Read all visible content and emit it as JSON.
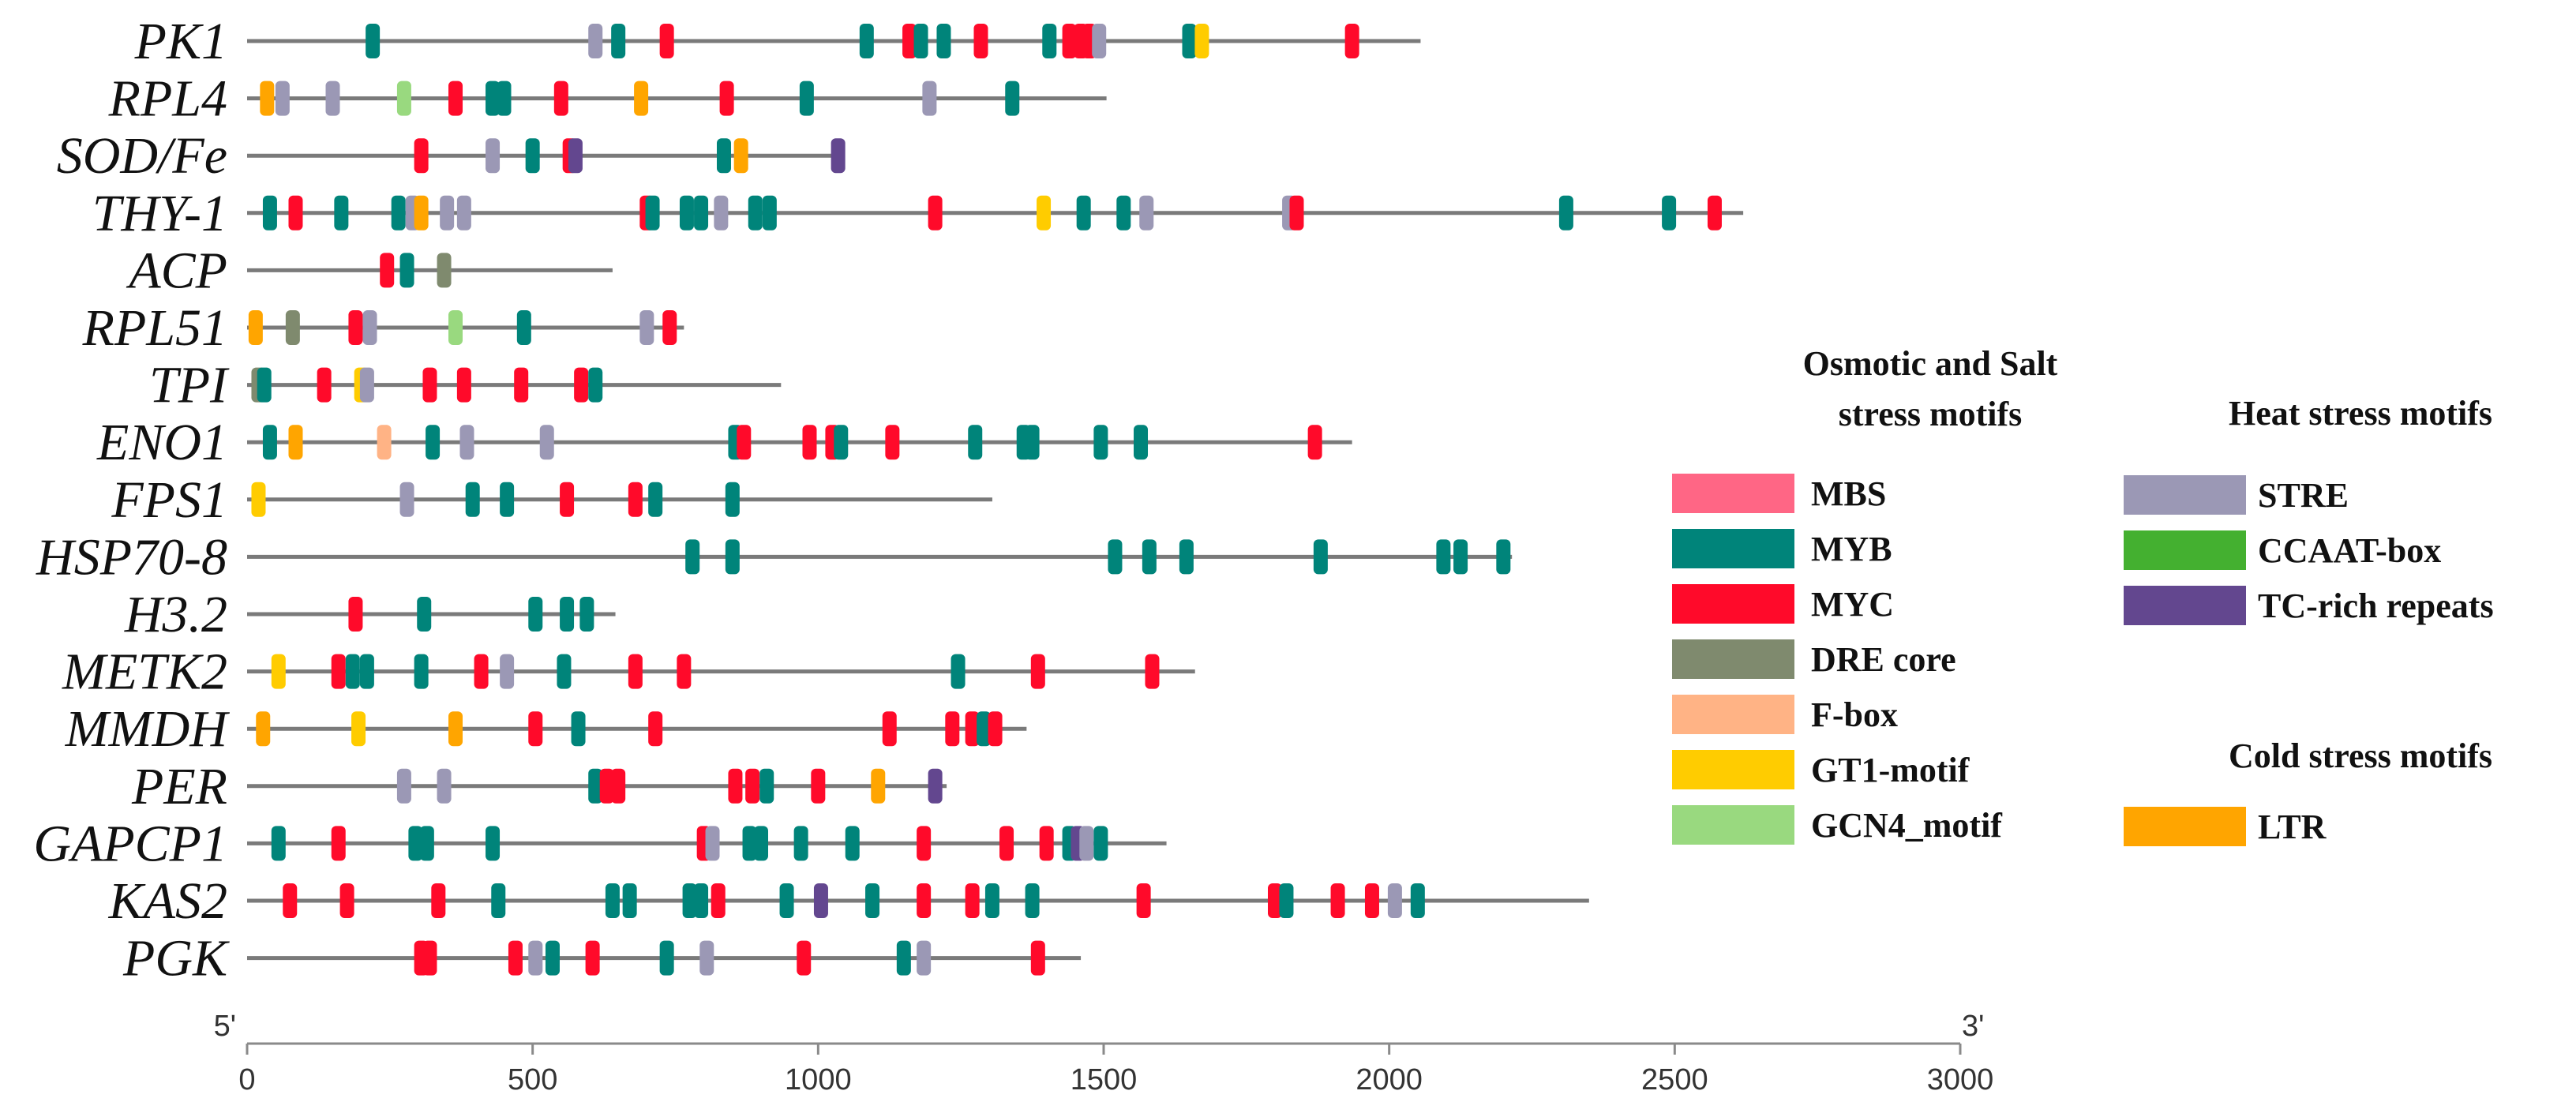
{
  "chart_data": {
    "type": "motif-map",
    "x_axis": {
      "range": [
        0,
        3000
      ],
      "ticks": [
        0,
        500,
        1000,
        1500,
        2000,
        2500,
        3000
      ],
      "end_left": "5'",
      "end_right": "3'"
    },
    "motif_types": [
      {
        "key": "MBS",
        "label": "MBS",
        "color": "#ff6685",
        "group": "osmotic"
      },
      {
        "key": "MYB",
        "label": "MYB",
        "color": "#00847a",
        "group": "osmotic"
      },
      {
        "key": "MYC",
        "label": "MYC",
        "color": "#ff0a2a",
        "group": "osmotic"
      },
      {
        "key": "DRE",
        "label": "DRE core",
        "color": "#7f8a6e",
        "group": "osmotic"
      },
      {
        "key": "FBOX",
        "label": "F-box",
        "color": "#ffb385",
        "group": "osmotic"
      },
      {
        "key": "GT1",
        "label": "GT1-motif",
        "color": "#ffcc00",
        "group": "osmotic"
      },
      {
        "key": "GCN4",
        "label": "GCN4_motif",
        "color": "#99d97f",
        "group": "osmotic"
      },
      {
        "key": "STRE",
        "label": "STRE",
        "color": "#9b98b5",
        "group": "heat"
      },
      {
        "key": "CCAAT",
        "label": "CCAAT-box",
        "color": "#44b030",
        "group": "heat"
      },
      {
        "key": "TC",
        "label": "TC-rich repeats",
        "color": "#63478f",
        "group": "heat"
      },
      {
        "key": "LTR",
        "label": "LTR",
        "color": "#ffa500",
        "group": "cold"
      }
    ],
    "legend_groups": [
      {
        "key": "osmotic",
        "title_lines": [
          "Osmotic and Salt",
          "stress motifs"
        ]
      },
      {
        "key": "heat",
        "title_lines": [
          "Heat stress motifs"
        ]
      },
      {
        "key": "cold",
        "title_lines": [
          "Cold stress motifs"
        ]
      }
    ],
    "genes": [
      {
        "name": "PK1",
        "length": 2055,
        "motifs": [
          [
            "MYB",
            220
          ],
          [
            "STRE",
            610
          ],
          [
            "MYB",
            650
          ],
          [
            "MYC",
            735
          ],
          [
            "MYB",
            1085
          ],
          [
            "MYC",
            1160
          ],
          [
            "MYB",
            1180
          ],
          [
            "MYB",
            1220
          ],
          [
            "MYC",
            1285
          ],
          [
            "MYB",
            1405
          ],
          [
            "MYC",
            1440
          ],
          [
            "MYC",
            1460
          ],
          [
            "MYC",
            1475
          ],
          [
            "STRE",
            1492
          ],
          [
            "MYB",
            1650
          ],
          [
            "GT1",
            1672
          ],
          [
            "MYC",
            1935
          ]
        ]
      },
      {
        "name": "RPL4",
        "length": 1505,
        "motifs": [
          [
            "LTR",
            35
          ],
          [
            "STRE",
            62
          ],
          [
            "STRE",
            150
          ],
          [
            "GCN4",
            275
          ],
          [
            "MYC",
            365
          ],
          [
            "MYB",
            430
          ],
          [
            "MYB",
            450
          ],
          [
            "MYC",
            550
          ],
          [
            "LTR",
            690
          ],
          [
            "MYC",
            840
          ],
          [
            "MYB",
            980
          ],
          [
            "STRE",
            1195
          ],
          [
            "MYB",
            1340
          ]
        ]
      },
      {
        "name": "SOD/Fe",
        "length": 1040,
        "motifs": [
          [
            "MYC",
            305
          ],
          [
            "STRE",
            430
          ],
          [
            "MYB",
            500
          ],
          [
            "MYC",
            565
          ],
          [
            "TC",
            575
          ],
          [
            "MYB",
            835
          ],
          [
            "LTR",
            865
          ],
          [
            "TC",
            1035
          ]
        ]
      },
      {
        "name": "THY-1",
        "length": 2620,
        "motifs": [
          [
            "MYB",
            40
          ],
          [
            "MYC",
            85
          ],
          [
            "MYB",
            165
          ],
          [
            "MYB",
            265
          ],
          [
            "STRE",
            290
          ],
          [
            "LTR",
            305
          ],
          [
            "STRE",
            350
          ],
          [
            "STRE",
            380
          ],
          [
            "MYC",
            700
          ],
          [
            "MYB",
            710
          ],
          [
            "MYB",
            770
          ],
          [
            "MYB",
            795
          ],
          [
            "STRE",
            830
          ],
          [
            "MYB",
            890
          ],
          [
            "MYB",
            915
          ],
          [
            "MYC",
            1205
          ],
          [
            "GT1",
            1395
          ],
          [
            "MYB",
            1465
          ],
          [
            "MYB",
            1535
          ],
          [
            "STRE",
            1575
          ],
          [
            "STRE",
            1825
          ],
          [
            "MYC",
            1838
          ],
          [
            "MYB",
            2310
          ],
          [
            "MYB",
            2490
          ],
          [
            "MYC",
            2570
          ]
        ]
      },
      {
        "name": "ACP",
        "length": 640,
        "motifs": [
          [
            "MYC",
            245
          ],
          [
            "MYB",
            280
          ],
          [
            "DRE",
            345
          ]
        ]
      },
      {
        "name": "RPL51",
        "length": 765,
        "motifs": [
          [
            "LTR",
            15
          ],
          [
            "DRE",
            80
          ],
          [
            "MYC",
            190
          ],
          [
            "STRE",
            215
          ],
          [
            "GCN4",
            365
          ],
          [
            "MYB",
            485
          ],
          [
            "STRE",
            700
          ],
          [
            "MYC",
            740
          ]
        ]
      },
      {
        "name": "TPI",
        "length": 935,
        "motifs": [
          [
            "DRE",
            20
          ],
          [
            "MYB",
            30
          ],
          [
            "MYC",
            135
          ],
          [
            "GT1",
            200
          ],
          [
            "STRE",
            210
          ],
          [
            "MYC",
            320
          ],
          [
            "MYC",
            380
          ],
          [
            "MYC",
            480
          ],
          [
            "MYC",
            585
          ],
          [
            "MYB",
            610
          ]
        ]
      },
      {
        "name": "ENO1",
        "length": 1935,
        "motifs": [
          [
            "MYB",
            40
          ],
          [
            "LTR",
            85
          ],
          [
            "FBOX",
            240
          ],
          [
            "MYB",
            325
          ],
          [
            "STRE",
            385
          ],
          [
            "STRE",
            525
          ],
          [
            "MYB",
            855
          ],
          [
            "MYC",
            870
          ],
          [
            "MYC",
            985
          ],
          [
            "MYC",
            1025
          ],
          [
            "MYB",
            1040
          ],
          [
            "MYC",
            1130
          ],
          [
            "MYB",
            1275
          ],
          [
            "MYB",
            1360
          ],
          [
            "MYB",
            1375
          ],
          [
            "MYB",
            1495
          ],
          [
            "MYB",
            1565
          ],
          [
            "MYC",
            1870
          ]
        ]
      },
      {
        "name": "FPS1",
        "length": 1305,
        "motifs": [
          [
            "GT1",
            20
          ],
          [
            "STRE",
            280
          ],
          [
            "MYB",
            395
          ],
          [
            "MYB",
            455
          ],
          [
            "MYC",
            560
          ],
          [
            "MYC",
            680
          ],
          [
            "MYB",
            715
          ],
          [
            "MYB",
            850
          ]
        ]
      },
      {
        "name": "HSP70-8",
        "length": 2215,
        "motifs": [
          [
            "MYB",
            780
          ],
          [
            "MYB",
            850
          ],
          [
            "MYB",
            1520
          ],
          [
            "MYB",
            1580
          ],
          [
            "MYB",
            1645
          ],
          [
            "MYB",
            1880
          ],
          [
            "MYB",
            2095
          ],
          [
            "MYB",
            2125
          ],
          [
            "MYB",
            2200
          ]
        ]
      },
      {
        "name": "H3.2",
        "length": 645,
        "motifs": [
          [
            "MYC",
            190
          ],
          [
            "MYB",
            310
          ],
          [
            "MYB",
            505
          ],
          [
            "MYB",
            560
          ],
          [
            "MYB",
            595
          ]
        ]
      },
      {
        "name": "METK2",
        "length": 1660,
        "motifs": [
          [
            "GT1",
            55
          ],
          [
            "MYC",
            160
          ],
          [
            "MYB",
            185
          ],
          [
            "MYB",
            210
          ],
          [
            "MYB",
            305
          ],
          [
            "MYC",
            410
          ],
          [
            "STRE",
            455
          ],
          [
            "MYB",
            555
          ],
          [
            "MYC",
            680
          ],
          [
            "MYC",
            765
          ],
          [
            "MYB",
            1245
          ],
          [
            "MYC",
            1385
          ],
          [
            "MYC",
            1585
          ]
        ]
      },
      {
        "name": "MMDH",
        "length": 1365,
        "motifs": [
          [
            "LTR",
            28
          ],
          [
            "GT1",
            195
          ],
          [
            "LTR",
            365
          ],
          [
            "MYC",
            505
          ],
          [
            "MYB",
            580
          ],
          [
            "MYC",
            715
          ],
          [
            "MYC",
            1125
          ],
          [
            "MYC",
            1235
          ],
          [
            "MYC",
            1270
          ],
          [
            "MYB",
            1290
          ],
          [
            "MYC",
            1310
          ]
        ]
      },
      {
        "name": "PER",
        "length": 1225,
        "motifs": [
          [
            "STRE",
            275
          ],
          [
            "STRE",
            345
          ],
          [
            "MYB",
            610
          ],
          [
            "MYC",
            630
          ],
          [
            "MYC",
            650
          ],
          [
            "MYC",
            855
          ],
          [
            "MYC",
            885
          ],
          [
            "MYB",
            910
          ],
          [
            "MYC",
            1000
          ],
          [
            "LTR",
            1105
          ],
          [
            "TC",
            1205
          ]
        ]
      },
      {
        "name": "GAPCP1",
        "length": 1610,
        "motifs": [
          [
            "MYB",
            55
          ],
          [
            "MYC",
            160
          ],
          [
            "MYB",
            295
          ],
          [
            "MYB",
            315
          ],
          [
            "MYB",
            430
          ],
          [
            "MYC",
            800
          ],
          [
            "STRE",
            815
          ],
          [
            "MYB",
            880
          ],
          [
            "MYB",
            900
          ],
          [
            "MYB",
            970
          ],
          [
            "MYB",
            1060
          ],
          [
            "MYC",
            1185
          ],
          [
            "MYC",
            1330
          ],
          [
            "MYC",
            1400
          ],
          [
            "MYB",
            1440
          ],
          [
            "TC",
            1455
          ],
          [
            "STRE",
            1470
          ],
          [
            "MYB",
            1495
          ]
        ]
      },
      {
        "name": "KAS2",
        "length": 2350,
        "motifs": [
          [
            "MYC",
            75
          ],
          [
            "MYC",
            175
          ],
          [
            "MYC",
            335
          ],
          [
            "MYB",
            440
          ],
          [
            "MYB",
            640
          ],
          [
            "MYB",
            670
          ],
          [
            "MYB",
            775
          ],
          [
            "MYB",
            795
          ],
          [
            "MYC",
            825
          ],
          [
            "MYB",
            945
          ],
          [
            "TC",
            1005
          ],
          [
            "MYB",
            1095
          ],
          [
            "MYC",
            1185
          ],
          [
            "MYC",
            1270
          ],
          [
            "MYB",
            1305
          ],
          [
            "MYB",
            1375
          ],
          [
            "MYC",
            1570
          ],
          [
            "MYC",
            1800
          ],
          [
            "MYB",
            1820
          ],
          [
            "MYC",
            1910
          ],
          [
            "MYC",
            1970
          ],
          [
            "STRE",
            2010
          ],
          [
            "MYB",
            2050
          ]
        ]
      },
      {
        "name": "PGK",
        "length": 1460,
        "motifs": [
          [
            "MYC",
            305
          ],
          [
            "MYC",
            320
          ],
          [
            "MYC",
            470
          ],
          [
            "STRE",
            505
          ],
          [
            "MYB",
            535
          ],
          [
            "MYC",
            605
          ],
          [
            "MYB",
            735
          ],
          [
            "STRE",
            805
          ],
          [
            "MYC",
            975
          ],
          [
            "MYB",
            1150
          ],
          [
            "STRE",
            1185
          ],
          [
            "MYC",
            1385
          ]
        ]
      }
    ]
  }
}
